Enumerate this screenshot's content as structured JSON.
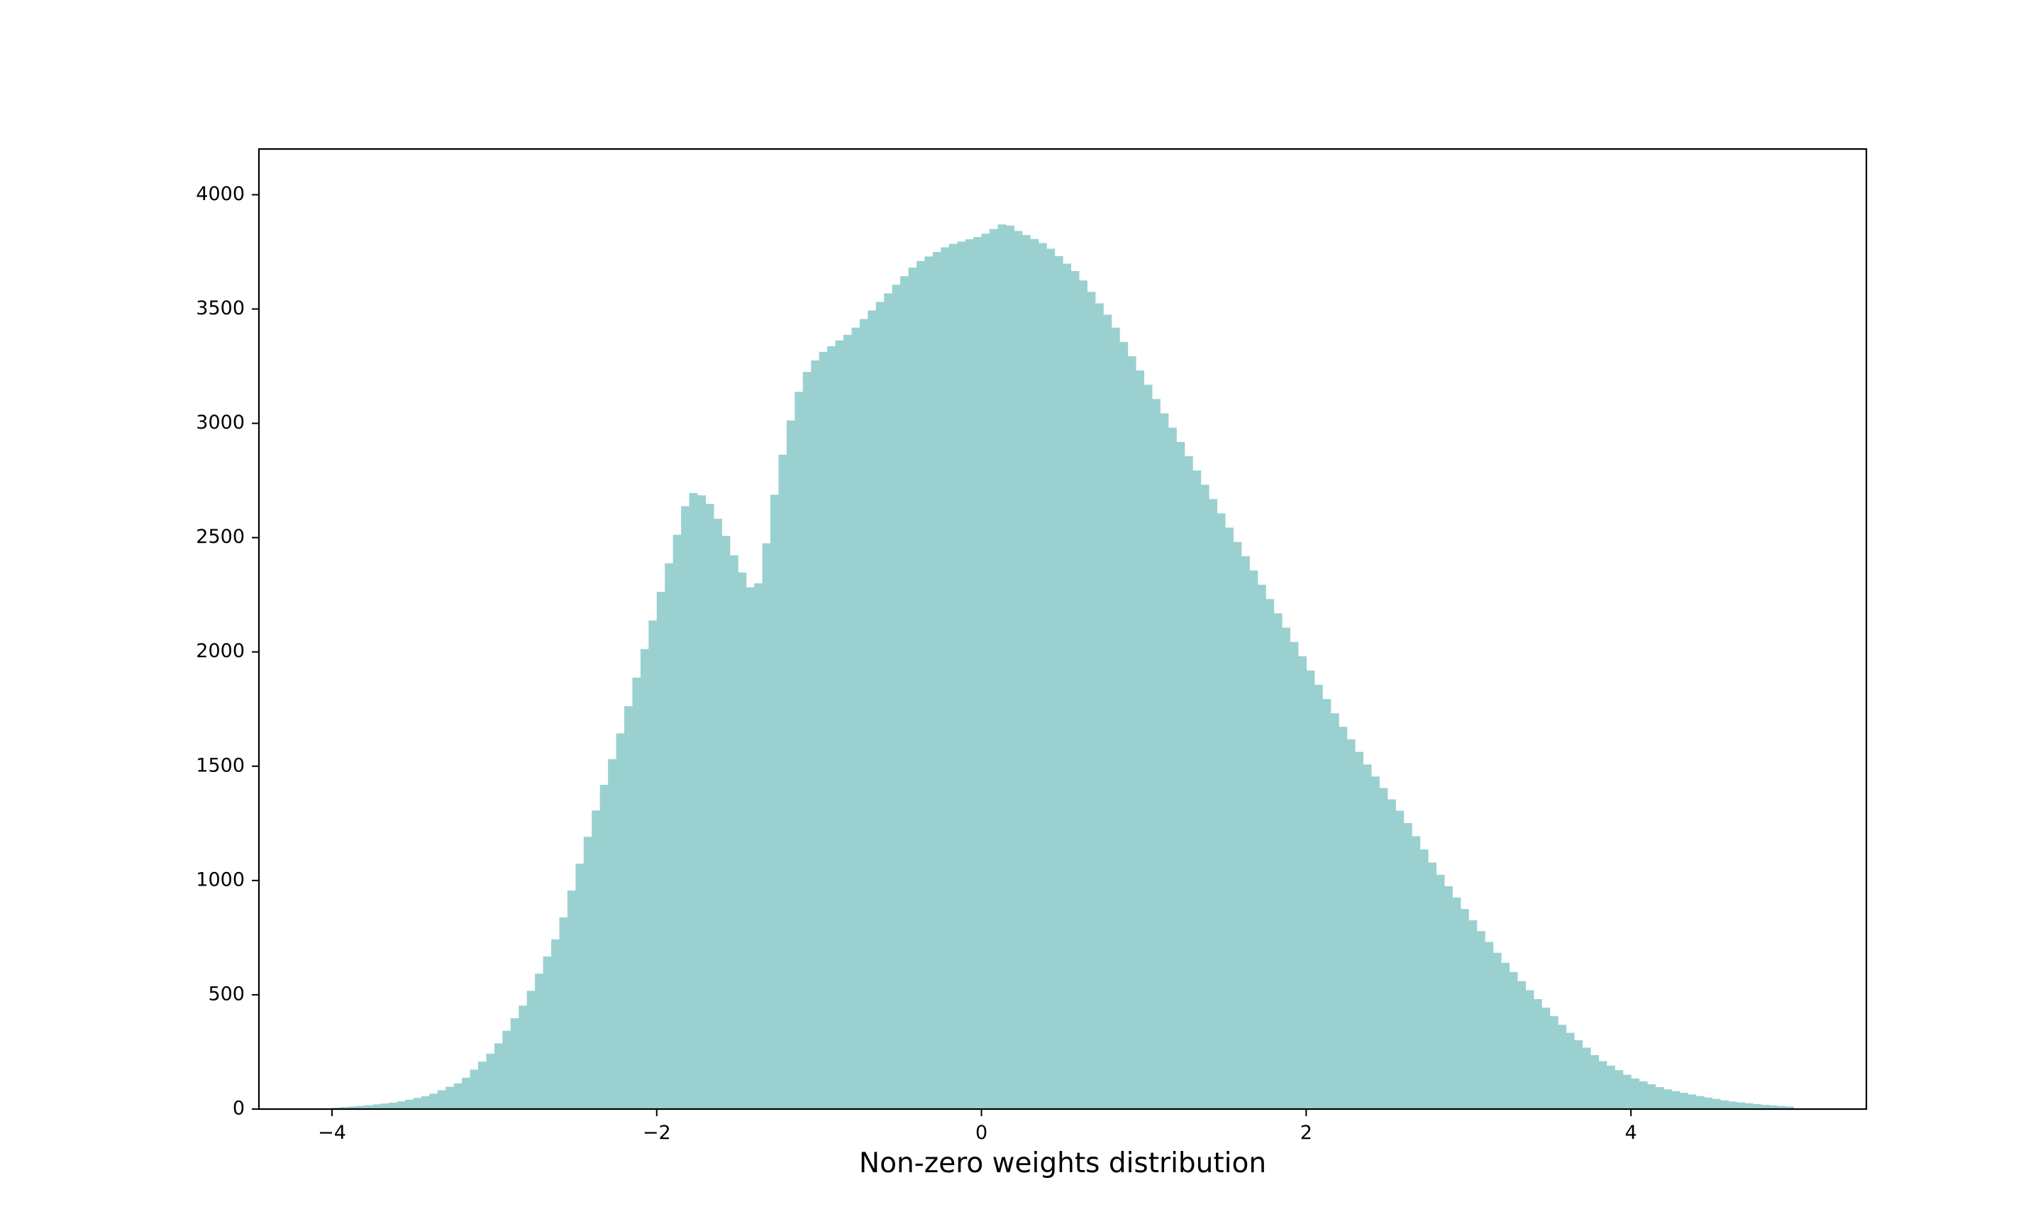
{
  "chart_data": {
    "type": "histogram",
    "title": "",
    "xlabel": "Non-zero weights distribution",
    "ylabel": "",
    "xlim": [
      -4.45,
      5.45
    ],
    "ylim": [
      0,
      4200
    ],
    "x_ticks": [
      -4,
      -2,
      0,
      2,
      4
    ],
    "x_tick_labels": [
      "−4",
      "−2",
      "0",
      "2",
      "4"
    ],
    "y_ticks": [
      0,
      500,
      1000,
      1500,
      2000,
      2500,
      3000,
      3500,
      4000
    ],
    "y_tick_labels": [
      "0",
      "500",
      "1000",
      "1500",
      "2000",
      "2500",
      "3000",
      "3500",
      "4000"
    ],
    "grid": false,
    "legend": false,
    "bar_color": "#9ad1d0",
    "data_range": [
      -4.0,
      5.0
    ],
    "bin_width": 0.05,
    "envelope": {
      "x": [
        -4.0,
        -3.8,
        -3.6,
        -3.4,
        -3.2,
        -3.0,
        -2.8,
        -2.6,
        -2.4,
        -2.2,
        -2.0,
        -1.9,
        -1.8,
        -1.7,
        -1.6,
        -1.5,
        -1.4,
        -1.35,
        -1.3,
        -1.2,
        -1.1,
        -1.0,
        -0.9,
        -0.8,
        -0.6,
        -0.4,
        -0.2,
        0.0,
        0.15,
        0.2,
        0.4,
        0.6,
        0.8,
        1.0,
        1.2,
        1.4,
        1.6,
        1.8,
        2.0,
        2.2,
        2.4,
        2.6,
        2.8,
        3.0,
        3.2,
        3.4,
        3.6,
        3.8,
        4.0,
        4.2,
        4.4,
        4.6,
        4.8,
        5.0
      ],
      "y": [
        5,
        15,
        30,
        60,
        120,
        260,
        480,
        780,
        1250,
        1700,
        2200,
        2450,
        2700,
        2680,
        2550,
        2380,
        2250,
        2350,
        2600,
        2950,
        3200,
        3300,
        3350,
        3400,
        3550,
        3700,
        3780,
        3820,
        3880,
        3850,
        3780,
        3650,
        3450,
        3200,
        2950,
        2700,
        2450,
        2200,
        1950,
        1700,
        1480,
        1280,
        1050,
        850,
        660,
        500,
        350,
        220,
        140,
        90,
        60,
        35,
        20,
        10
      ]
    }
  }
}
